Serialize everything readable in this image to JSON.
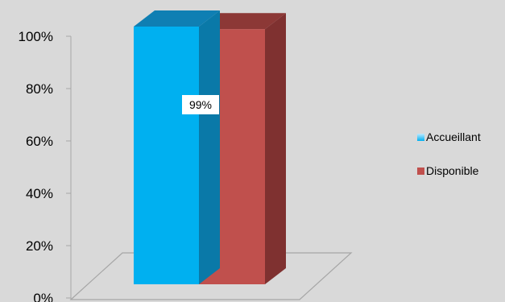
{
  "chart_data": {
    "type": "bar",
    "style": "3d-column",
    "categories": [
      ""
    ],
    "series": [
      {
        "name": "Accueillant",
        "values": [
          100
        ],
        "color": "#00b0f0"
      },
      {
        "name": "Disponible",
        "values": [
          99
        ],
        "color": "#c0504d"
      }
    ],
    "data_labels": [
      "99%"
    ],
    "title": "",
    "xlabel": "",
    "ylabel": "",
    "ylim": [
      0,
      100
    ],
    "yticks": [
      "0%",
      "20%",
      "40%",
      "60%",
      "80%",
      "100%"
    ],
    "grid": false,
    "legend_position": "right"
  },
  "colors": {
    "background": "#d9d9d9",
    "accueillant_top": "#0f7fb3",
    "disponible_side": "#7f3130",
    "disponible_top": "#8c3836",
    "floor_line": "#a6a6a6"
  }
}
